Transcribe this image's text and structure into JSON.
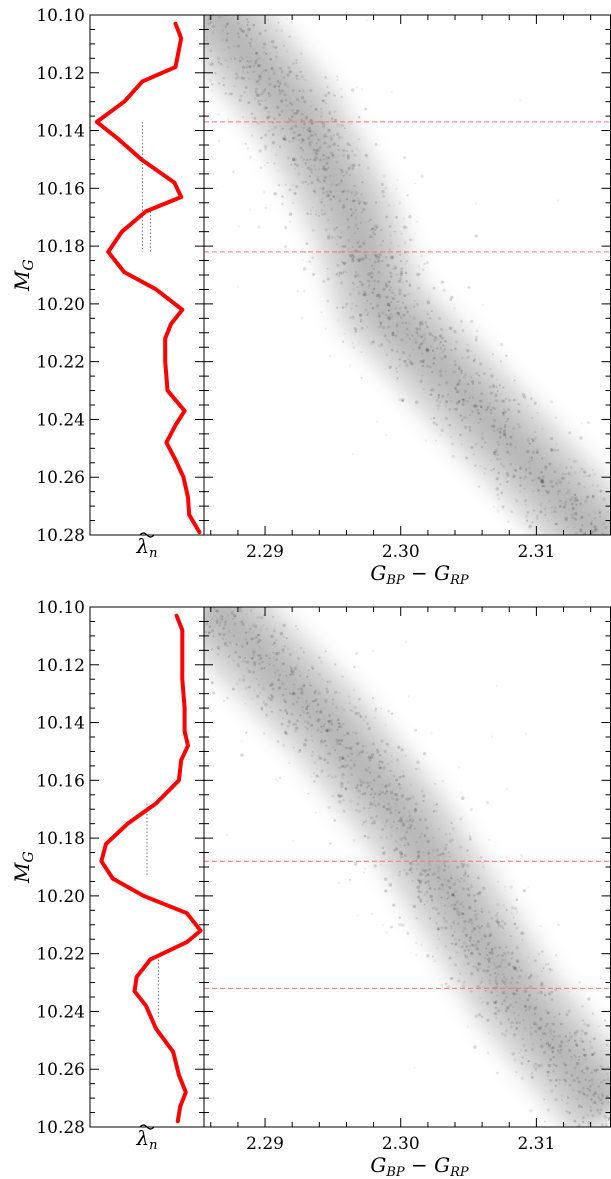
{
  "chart_data": [
    {
      "type": "scatter",
      "panel": "top",
      "ylabel": "M_G",
      "xlabel": "G_BP − G_RP",
      "side_xlabel": "λ̃_n",
      "ylim": [
        10.28,
        10.1
      ],
      "xlim": [
        2.2855,
        2.3155
      ],
      "yticks": [
        "10.10",
        "10.12",
        "10.14",
        "10.16",
        "10.18",
        "10.20",
        "10.22",
        "10.24",
        "10.26",
        "10.28"
      ],
      "xticks": [
        "2.29",
        "2.30",
        "2.31"
      ],
      "band": [
        [
          2.2855,
          10.095
        ],
        [
          2.2925,
          10.135
        ],
        [
          2.2965,
          10.17
        ],
        [
          2.2985,
          10.2
        ],
        [
          2.3035,
          10.225
        ],
        [
          2.3085,
          10.25
        ],
        [
          2.3155,
          10.285
        ]
      ],
      "band_points": 1400,
      "series": [
        {
          "values": [
            [
              10.103,
              0.75
            ],
            [
              10.108,
              0.8
            ],
            [
              10.118,
              0.75
            ],
            [
              10.123,
              0.46
            ],
            [
              10.13,
              0.3
            ],
            [
              10.137,
              0.06
            ],
            [
              10.143,
              0.25
            ],
            [
              10.15,
              0.45
            ],
            [
              10.158,
              0.74
            ],
            [
              10.163,
              0.8
            ],
            [
              10.168,
              0.49
            ],
            [
              10.175,
              0.28
            ],
            [
              10.182,
              0.16
            ],
            [
              10.189,
              0.3
            ],
            [
              10.195,
              0.58
            ],
            [
              10.202,
              0.81
            ],
            [
              10.207,
              0.71
            ],
            [
              10.212,
              0.66
            ],
            [
              10.22,
              0.66
            ],
            [
              10.225,
              0.67
            ],
            [
              10.23,
              0.68
            ],
            [
              10.237,
              0.83
            ],
            [
              10.242,
              0.75
            ],
            [
              10.248,
              0.67
            ],
            [
              10.254,
              0.75
            ],
            [
              10.26,
              0.82
            ],
            [
              10.267,
              0.86
            ],
            [
              10.273,
              0.87
            ],
            [
              10.279,
              0.96
            ]
          ]
        }
      ],
      "hlines": [
        10.137,
        10.182
      ],
      "vguides": [
        {
          "x": 0.46,
          "y0": 10.137,
          "y1": 10.182
        },
        {
          "x": 0.53,
          "y0": 10.168,
          "y1": 10.182
        }
      ]
    },
    {
      "type": "scatter",
      "panel": "bottom",
      "ylabel": "M_G",
      "xlabel": "G_BP − G_RP",
      "side_xlabel": "λ̃_n",
      "ylim": [
        10.28,
        10.1
      ],
      "xlim": [
        2.2855,
        2.3155
      ],
      "yticks": [
        "10.10",
        "10.12",
        "10.14",
        "10.16",
        "10.18",
        "10.20",
        "10.22",
        "10.24",
        "10.26",
        "10.28"
      ],
      "xticks": [
        "2.29",
        "2.30",
        "2.31"
      ],
      "band": [
        [
          2.2855,
          10.097
        ],
        [
          2.2945,
          10.14
        ],
        [
          2.3005,
          10.175
        ],
        [
          2.3045,
          10.205
        ],
        [
          2.3085,
          10.235
        ],
        [
          2.3155,
          10.275
        ]
      ],
      "band_points": 1400,
      "series": [
        {
          "values": [
            [
              10.103,
              0.76
            ],
            [
              10.108,
              0.81
            ],
            [
              10.115,
              0.81
            ],
            [
              10.125,
              0.81
            ],
            [
              10.135,
              0.83
            ],
            [
              10.143,
              0.83
            ],
            [
              10.148,
              0.86
            ],
            [
              10.153,
              0.8
            ],
            [
              10.16,
              0.78
            ],
            [
              10.168,
              0.58
            ],
            [
              10.175,
              0.33
            ],
            [
              10.182,
              0.14
            ],
            [
              10.188,
              0.1
            ],
            [
              10.194,
              0.2
            ],
            [
              10.2,
              0.47
            ],
            [
              10.206,
              0.85
            ],
            [
              10.212,
              0.97
            ],
            [
              10.216,
              0.85
            ],
            [
              10.222,
              0.53
            ],
            [
              10.228,
              0.41
            ],
            [
              10.233,
              0.39
            ],
            [
              10.238,
              0.49
            ],
            [
              10.246,
              0.58
            ],
            [
              10.254,
              0.73
            ],
            [
              10.262,
              0.78
            ],
            [
              10.268,
              0.84
            ],
            [
              10.273,
              0.79
            ],
            [
              10.278,
              0.77
            ]
          ]
        }
      ],
      "hlines": [
        10.188,
        10.232
      ],
      "vguides": [
        {
          "x": 0.5,
          "y0": 10.168,
          "y1": 10.193
        },
        {
          "x": 0.6,
          "y0": 10.222,
          "y1": 10.242
        }
      ]
    }
  ],
  "colors": {
    "curve": "#ff0000",
    "hline": "#ff6f6f",
    "guide": "#777777",
    "points": "#000000"
  }
}
